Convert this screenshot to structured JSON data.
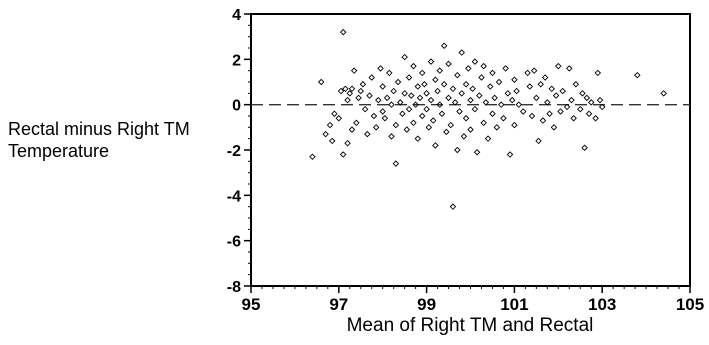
{
  "chart_data": {
    "type": "scatter",
    "title": "",
    "xlabel": "Mean of Right TM and Rectal",
    "ylabel_lines": [
      "Rectal minus Right TM",
      "Temperature"
    ],
    "xlim": [
      95,
      105
    ],
    "ylim": [
      -8,
      4
    ],
    "x_ticks": [
      95,
      97,
      99,
      101,
      103,
      105
    ],
    "x_minor_step": 0.25,
    "y_ticks": [
      -8,
      -6,
      -4,
      -2,
      0,
      2,
      4
    ],
    "y_minor_step": 0.5,
    "reference_line_y": 0,
    "reference_line_style": "dashed",
    "marker": "diamond-open",
    "grid": false,
    "series": [
      {
        "points": [
          [
            96.4,
            -2.3
          ],
          [
            96.6,
            1.0
          ],
          [
            96.7,
            -1.3
          ],
          [
            96.8,
            -0.9
          ],
          [
            96.85,
            -1.6
          ],
          [
            96.9,
            -0.4
          ],
          [
            97.0,
            -0.6
          ],
          [
            97.05,
            0.6
          ],
          [
            97.1,
            -2.2
          ],
          [
            97.1,
            3.2
          ],
          [
            97.15,
            0.7
          ],
          [
            97.2,
            -1.7
          ],
          [
            97.2,
            0.2
          ],
          [
            97.25,
            0.5
          ],
          [
            97.3,
            -1.1
          ],
          [
            97.3,
            0.7
          ],
          [
            97.35,
            1.5
          ],
          [
            97.4,
            -0.8
          ],
          [
            97.45,
            0.3
          ],
          [
            97.5,
            0.6
          ],
          [
            97.55,
            0.9
          ],
          [
            97.6,
            -0.2
          ],
          [
            97.65,
            -1.3
          ],
          [
            97.7,
            0.4
          ],
          [
            97.75,
            1.2
          ],
          [
            97.8,
            -0.5
          ],
          [
            97.85,
            -1.0
          ],
          [
            97.9,
            0.2
          ],
          [
            97.95,
            1.6
          ],
          [
            98.0,
            -0.3
          ],
          [
            98.0,
            0.8
          ],
          [
            98.05,
            -0.6
          ],
          [
            98.1,
            0.3
          ],
          [
            98.15,
            1.4
          ],
          [
            98.2,
            -1.4
          ],
          [
            98.2,
            0.0
          ],
          [
            98.25,
            0.6
          ],
          [
            98.3,
            -2.6
          ],
          [
            98.3,
            -0.9
          ],
          [
            98.35,
            1.0
          ],
          [
            98.4,
            0.1
          ],
          [
            98.45,
            -0.4
          ],
          [
            98.5,
            2.1
          ],
          [
            98.5,
            0.5
          ],
          [
            98.55,
            -1.1
          ],
          [
            98.6,
            1.2
          ],
          [
            98.6,
            -0.2
          ],
          [
            98.65,
            0.4
          ],
          [
            98.7,
            -0.8
          ],
          [
            98.7,
            1.7
          ],
          [
            98.75,
            0.0
          ],
          [
            98.8,
            -1.5
          ],
          [
            98.8,
            0.8
          ],
          [
            98.85,
            0.3
          ],
          [
            98.9,
            -0.5
          ],
          [
            98.9,
            1.4
          ],
          [
            98.95,
            0.9
          ],
          [
            99.0,
            -0.2
          ],
          [
            99.0,
            0.5
          ],
          [
            99.05,
            -1.0
          ],
          [
            99.1,
            1.9
          ],
          [
            99.1,
            0.2
          ],
          [
            99.15,
            -0.7
          ],
          [
            99.2,
            1.1
          ],
          [
            99.2,
            -1.8
          ],
          [
            99.25,
            0.6
          ],
          [
            99.3,
            0.0
          ],
          [
            99.3,
            1.5
          ],
          [
            99.35,
            -0.4
          ],
          [
            99.4,
            2.6
          ],
          [
            99.4,
            0.9
          ],
          [
            99.45,
            -1.2
          ],
          [
            99.5,
            0.3
          ],
          [
            99.5,
            1.8
          ],
          [
            99.55,
            -0.9
          ],
          [
            99.6,
            -4.5
          ],
          [
            99.6,
            0.7
          ],
          [
            99.65,
            0.1
          ],
          [
            99.7,
            -2.0
          ],
          [
            99.7,
            1.3
          ],
          [
            99.75,
            -0.3
          ],
          [
            99.8,
            0.5
          ],
          [
            99.8,
            2.3
          ],
          [
            99.85,
            -1.4
          ],
          [
            99.9,
            0.9
          ],
          [
            99.9,
            -0.6
          ],
          [
            99.95,
            1.6
          ],
          [
            100.0,
            0.2
          ],
          [
            100.0,
            -1.1
          ],
          [
            100.05,
            0.7
          ],
          [
            100.1,
            1.9
          ],
          [
            100.1,
            -0.2
          ],
          [
            100.15,
            -2.1
          ],
          [
            100.2,
            0.4
          ],
          [
            100.25,
            1.2
          ],
          [
            100.3,
            -0.8
          ],
          [
            100.3,
            1.7
          ],
          [
            100.35,
            0.1
          ],
          [
            100.4,
            -1.5
          ],
          [
            100.45,
            0.8
          ],
          [
            100.5,
            -0.4
          ],
          [
            100.5,
            1.4
          ],
          [
            100.55,
            0.3
          ],
          [
            100.6,
            -1.0
          ],
          [
            100.65,
            1.0
          ],
          [
            100.7,
            0.0
          ],
          [
            100.75,
            -0.6
          ],
          [
            100.8,
            1.6
          ],
          [
            100.85,
            0.5
          ],
          [
            100.9,
            -2.2
          ],
          [
            100.95,
            0.2
          ],
          [
            101.0,
            -0.9
          ],
          [
            101.0,
            1.1
          ],
          [
            101.05,
            0.6
          ],
          [
            101.1,
            0.0
          ],
          [
            101.2,
            -0.3
          ],
          [
            101.3,
            1.4
          ],
          [
            101.35,
            0.8
          ],
          [
            101.4,
            -0.5
          ],
          [
            101.45,
            1.5
          ],
          [
            101.5,
            0.3
          ],
          [
            101.55,
            -1.6
          ],
          [
            101.6,
            0.9
          ],
          [
            101.65,
            -0.7
          ],
          [
            101.7,
            1.2
          ],
          [
            101.75,
            0.1
          ],
          [
            101.8,
            -0.4
          ],
          [
            101.85,
            0.7
          ],
          [
            101.9,
            -1.0
          ],
          [
            101.95,
            0.4
          ],
          [
            102.0,
            1.7
          ],
          [
            102.05,
            -0.3
          ],
          [
            102.1,
            0.6
          ],
          [
            102.2,
            -0.1
          ],
          [
            102.25,
            1.6
          ],
          [
            102.3,
            0.2
          ],
          [
            102.35,
            -0.6
          ],
          [
            102.4,
            0.9
          ],
          [
            102.5,
            -0.2
          ],
          [
            102.55,
            0.5
          ],
          [
            102.6,
            -1.9
          ],
          [
            102.65,
            0.3
          ],
          [
            102.7,
            -0.4
          ],
          [
            102.75,
            0.1
          ],
          [
            102.85,
            -0.6
          ],
          [
            102.9,
            1.4
          ],
          [
            102.95,
            0.2
          ],
          [
            103.0,
            -0.1
          ],
          [
            103.8,
            1.3
          ],
          [
            104.4,
            0.5
          ]
        ]
      }
    ]
  }
}
